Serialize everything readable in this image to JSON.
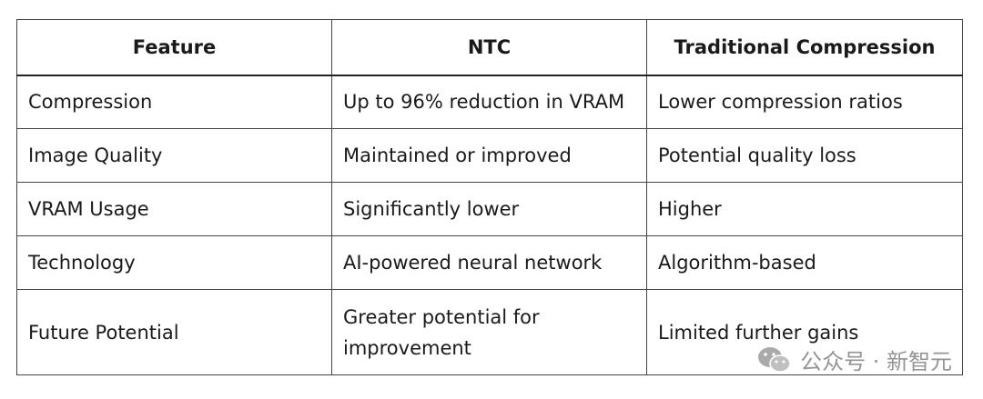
{
  "table": {
    "headers": [
      "Feature",
      "NTC",
      "Traditional Compression"
    ],
    "rows": [
      [
        "Compression",
        "Up to 96% reduction in VRAM",
        "Lower compression ratios"
      ],
      [
        "Image Quality",
        "Maintained or improved",
        "Potential quality loss"
      ],
      [
        "VRAM Usage",
        "Significantly lower",
        "Higher"
      ],
      [
        "Technology",
        "AI-powered neural network",
        "Algorithm-based"
      ],
      [
        "Future Potential",
        "Greater potential for improvement",
        "Limited further gains"
      ]
    ]
  },
  "watermark": {
    "icon": "wechat-icon",
    "text": "公众号 · 新智元"
  }
}
